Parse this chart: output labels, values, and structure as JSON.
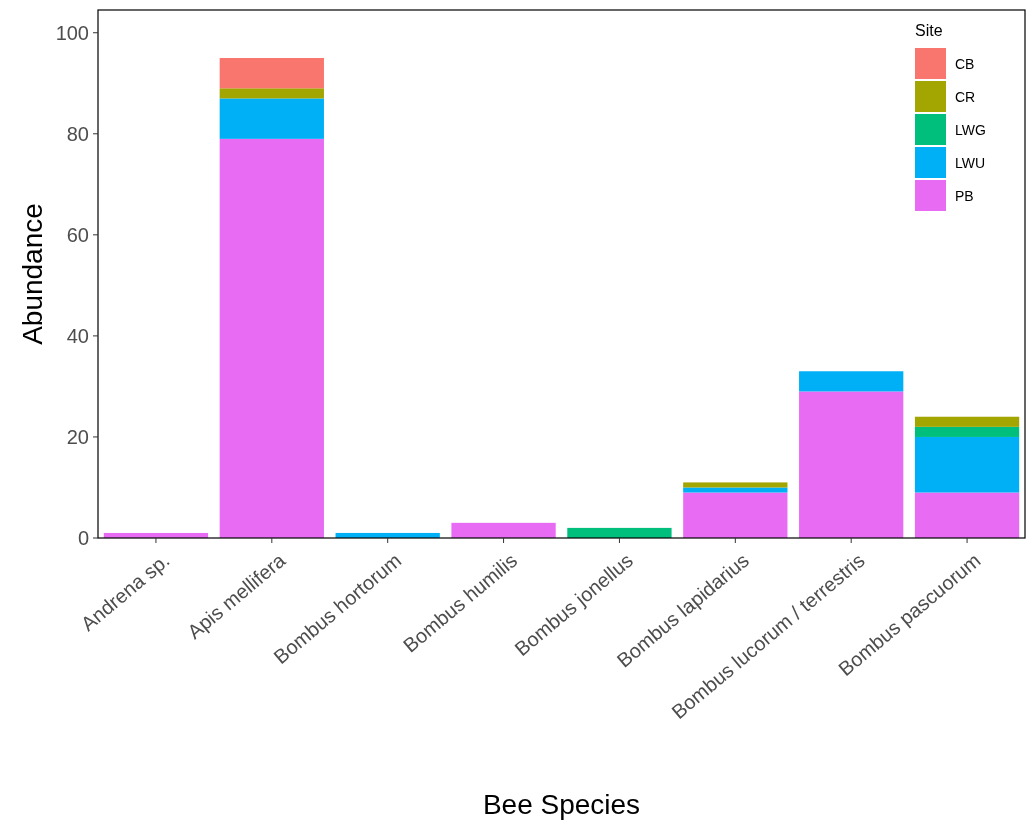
{
  "chart_data": {
    "type": "bar",
    "stacked": true,
    "xlabel": "Bee Species",
    "ylabel": "Abundance",
    "legend_title": "Site",
    "legend": "top right",
    "categories": [
      "Andrena sp.",
      "Apis mellifera",
      "Bombus hortorum",
      "Bombus humilis",
      "Bombus jonellus",
      "Bombus lapidarius",
      "Bombus lucorum / terrestris",
      "Bombus pascuorum"
    ],
    "series": [
      {
        "name": "PB",
        "color": "#e76bf3",
        "values": [
          1,
          79,
          null,
          3,
          null,
          9,
          29,
          9
        ]
      },
      {
        "name": "LWU",
        "color": "#00b0f6",
        "values": [
          null,
          8,
          1,
          null,
          null,
          1,
          4,
          11
        ]
      },
      {
        "name": "LWG",
        "color": "#00bf7d",
        "values": [
          null,
          null,
          null,
          null,
          2,
          null,
          null,
          2
        ]
      },
      {
        "name": "CR",
        "color": "#a3a500",
        "values": [
          null,
          2,
          null,
          null,
          null,
          1,
          null,
          2
        ]
      },
      {
        "name": "CB",
        "color": "#f8766d",
        "values": [
          null,
          6,
          null,
          null,
          null,
          null,
          null,
          null
        ]
      }
    ],
    "ylim": [
      0,
      104.5
    ],
    "yticks": [
      0,
      20,
      40,
      60,
      80,
      100
    ],
    "grid": false
  }
}
